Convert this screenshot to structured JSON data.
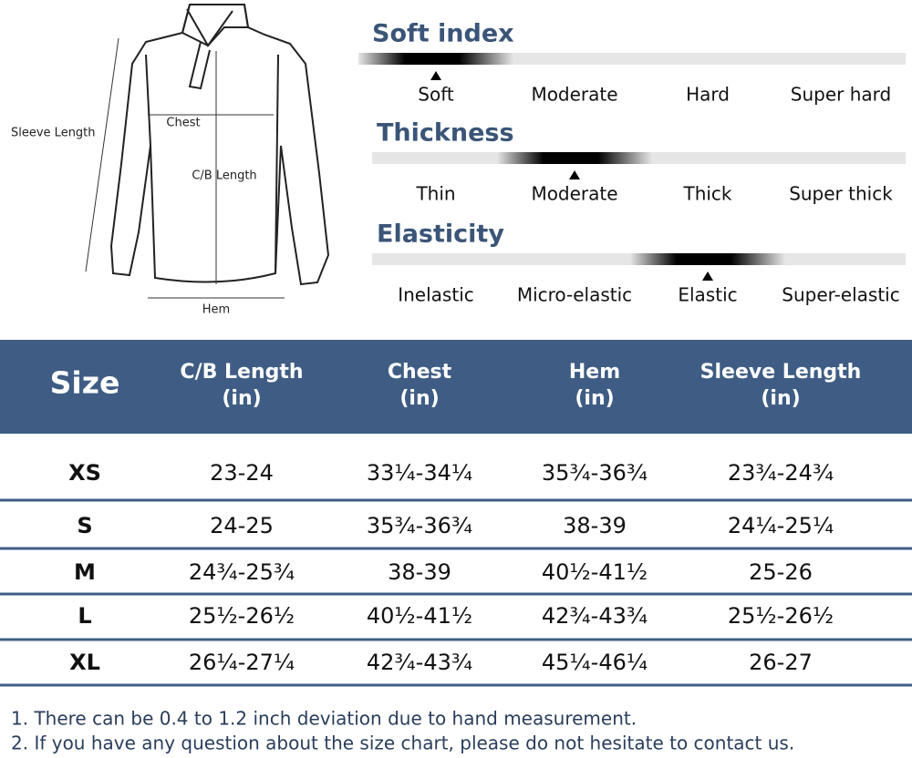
{
  "diagram": {
    "sleeve_length": "Sleeve Length",
    "chest": "Chest",
    "cb_length": "C/B Length",
    "hem": "Hem"
  },
  "scales": [
    {
      "title": "Soft index",
      "options": [
        "Soft",
        "Moderate",
        "Hard",
        "Super hard"
      ],
      "selected": 0
    },
    {
      "title": "Thickness",
      "options": [
        "Thin",
        "Moderate",
        "Thick",
        "Super thick"
      ],
      "selected": 1
    },
    {
      "title": "Elasticity",
      "options": [
        "Inelastic",
        "Micro-elastic",
        "Elastic",
        "Super-elastic"
      ],
      "selected": 2
    }
  ],
  "table": {
    "header": [
      [
        "Size"
      ],
      [
        "C/B Length",
        "(in)"
      ],
      [
        "Chest",
        "(in)"
      ],
      [
        "Hem",
        "(in)"
      ],
      [
        "Sleeve Length",
        "(in)"
      ]
    ],
    "rows": [
      [
        "XS",
        "23-24",
        "33¼-34¼",
        "35¾-36¾",
        "23¾-24¾"
      ],
      [
        "S",
        "24-25",
        "35¾-36¾",
        "38-39",
        "24¼-25¼"
      ],
      [
        "M",
        "24¾-25¾",
        "38-39",
        "40½-41½",
        "25-26"
      ],
      [
        "L",
        "25½-26½",
        "40½-41½",
        "42¾-43¾",
        "25½-26½"
      ],
      [
        "XL",
        "26¼-27¼",
        "42¾-43¾",
        "45¼-46¼",
        "26-27"
      ]
    ]
  },
  "notes": [
    "1. There can be 0.4 to 1.2 inch deviation due to hand measurement.",
    "2. If you have any question about the size chart, please do not hesitate to contact us."
  ]
}
